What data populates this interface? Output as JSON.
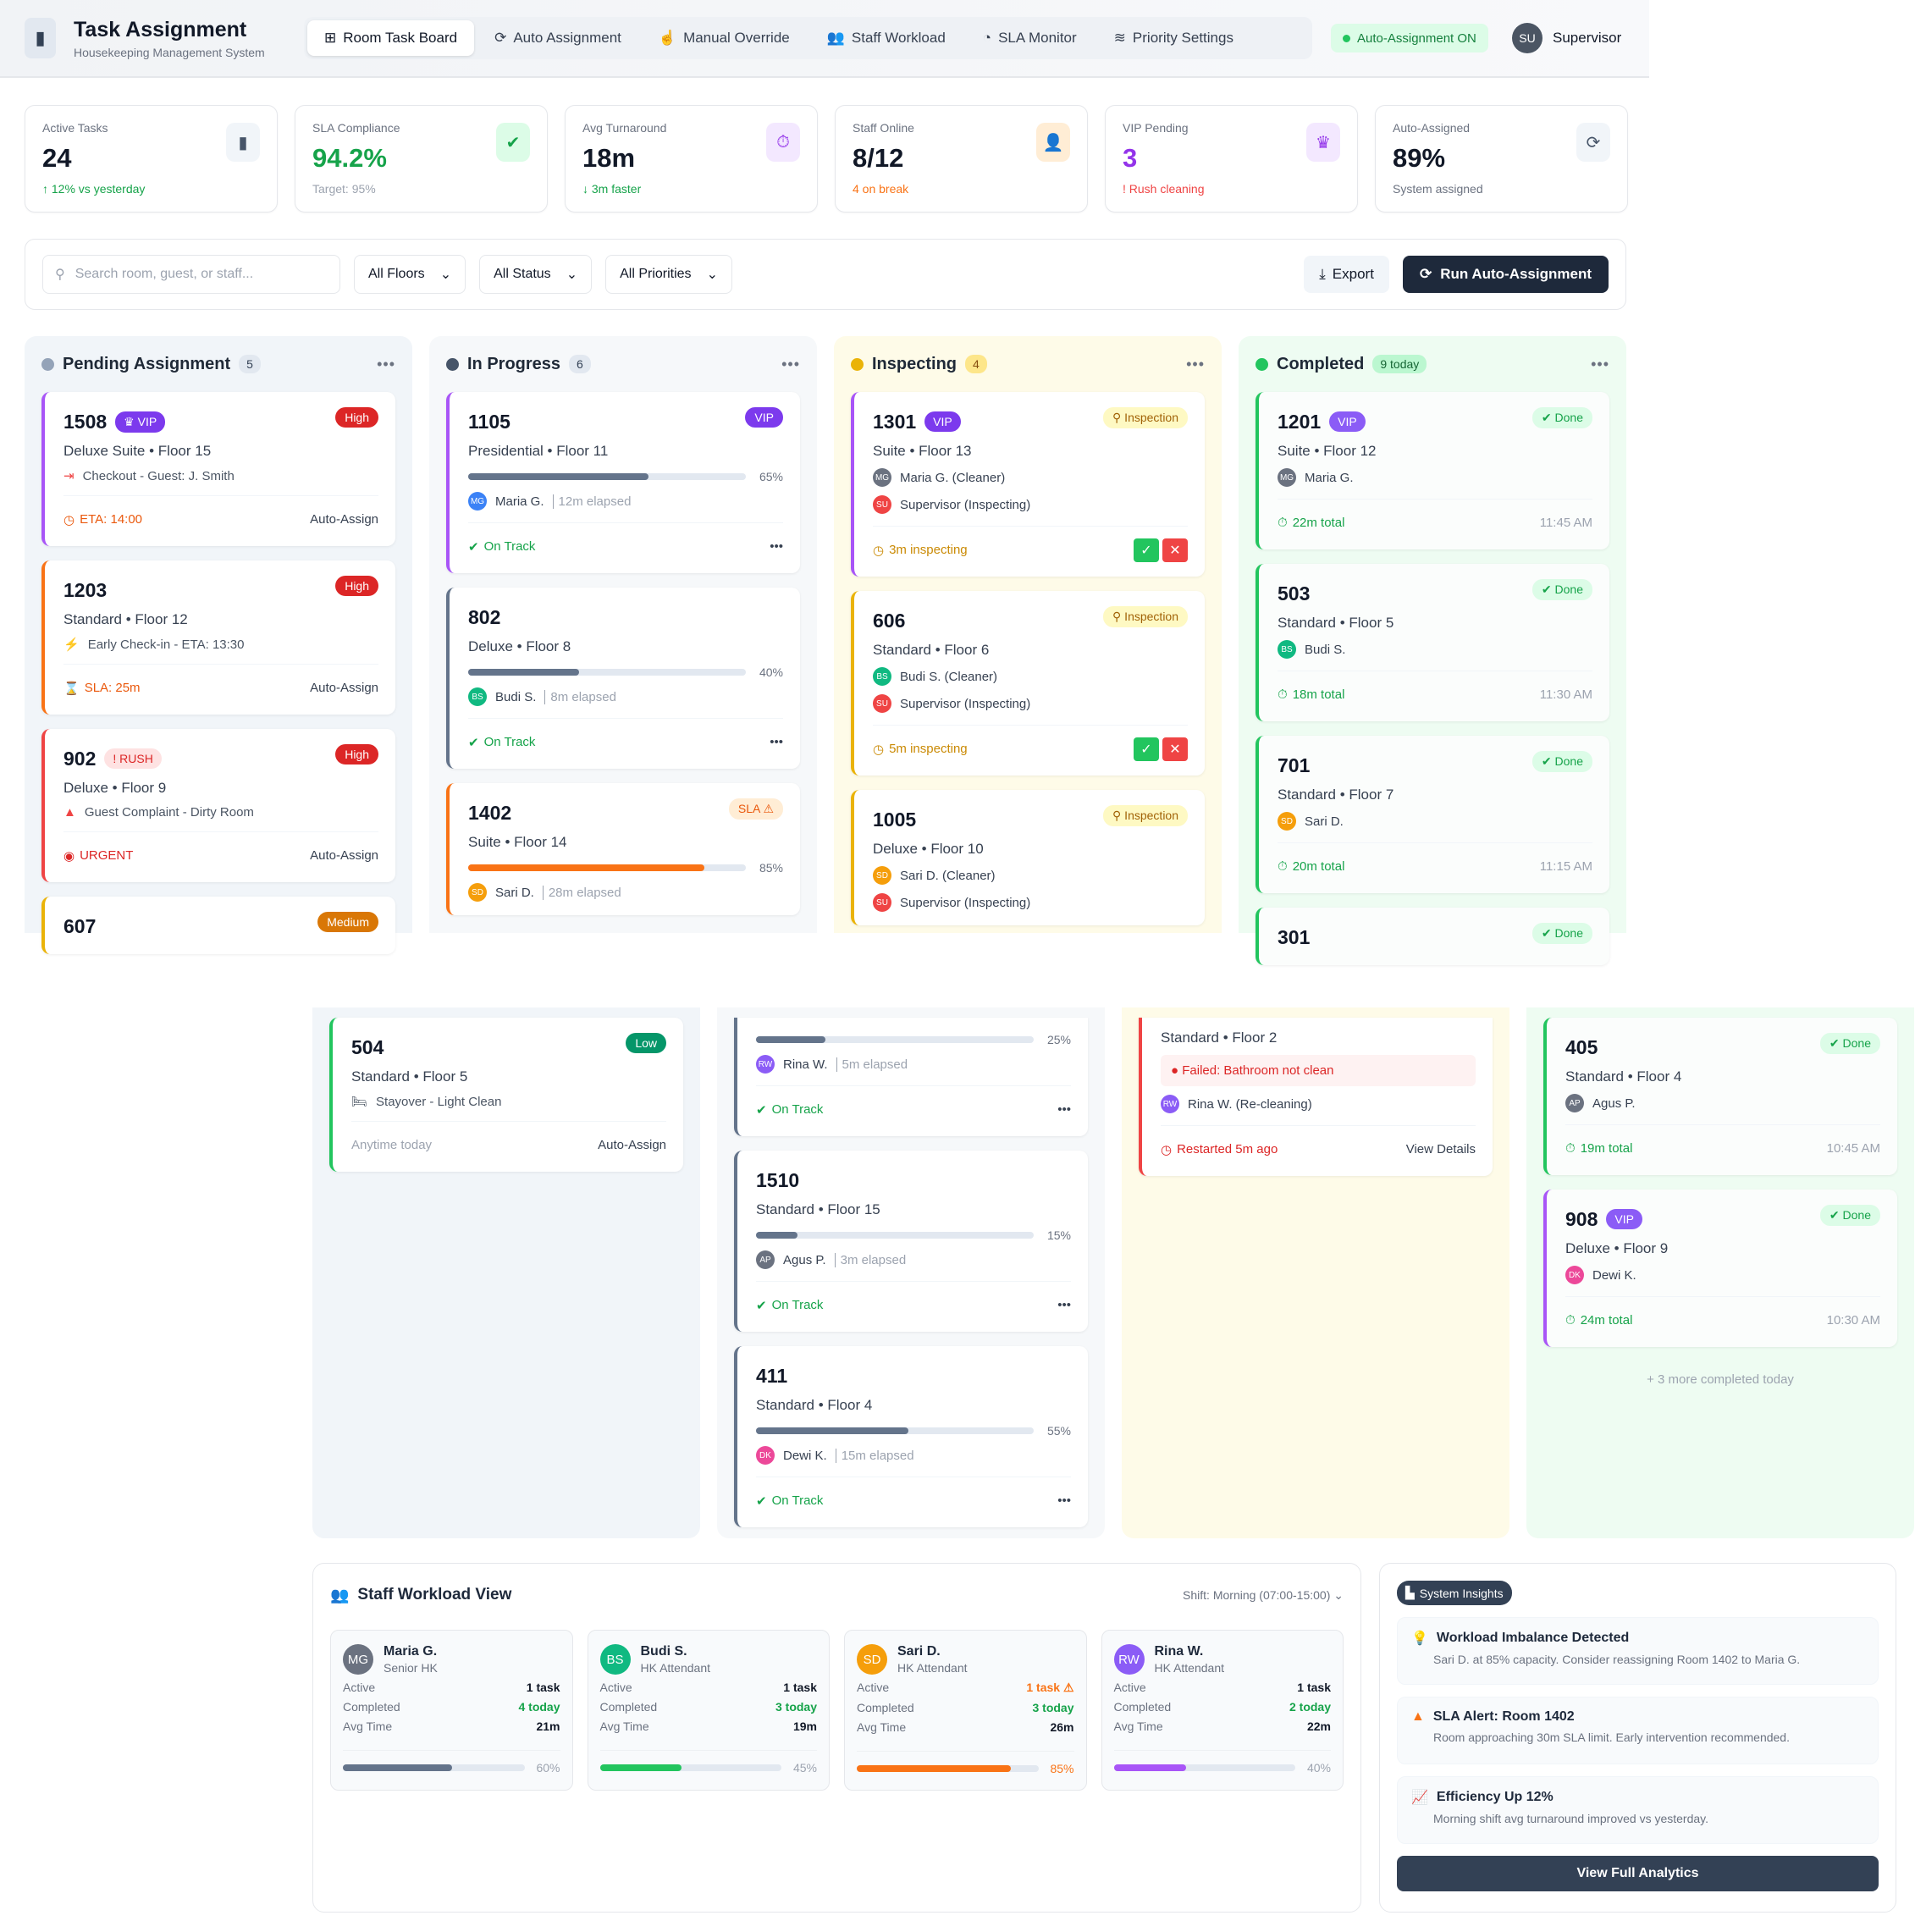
{
  "header": {
    "title": "Task Assignment",
    "subtitle": "Housekeeping Management System",
    "logo_icon": "clipboard-icon",
    "tabs": [
      {
        "label": "Room Task Board",
        "icon": "⊞",
        "active": true
      },
      {
        "label": "Auto Assignment",
        "icon": "⟳"
      },
      {
        "label": "Manual Override",
        "icon": "☝"
      },
      {
        "label": "Staff Workload",
        "icon": "👥"
      },
      {
        "label": "SLA Monitor",
        "icon": "◔"
      },
      {
        "label": "Priority Settings",
        "icon": "≋"
      }
    ],
    "status_badge": "Auto-Assignment ON",
    "user": {
      "initials": "SU",
      "name": "Supervisor"
    }
  },
  "stats": [
    {
      "label": "Active Tasks",
      "value": "24",
      "sub": "↑ 12% vs yesterday",
      "value_color": "#111827",
      "sub_color": "#16a34a",
      "icon": "▮",
      "icon_color": "#475569",
      "icon_bg": "#f1f5f9"
    },
    {
      "label": "SLA Compliance",
      "value": "94.2%",
      "sub": "Target: 95%",
      "value_color": "#16a34a",
      "sub_color": "#9ca3af",
      "icon": "✔",
      "icon_color": "#16a34a",
      "icon_bg": "#dcfce7"
    },
    {
      "label": "Avg Turnaround",
      "value": "18m",
      "sub": "↓ 3m faster",
      "value_color": "#111827",
      "sub_color": "#16a34a",
      "icon": "⏱",
      "icon_color": "#9333ea",
      "icon_bg": "#f3e8ff"
    },
    {
      "label": "Staff Online",
      "value": "8/12",
      "sub": "4 on break",
      "value_color": "#111827",
      "sub_color": "#f97316",
      "icon": "👤",
      "icon_color": "#ea580c",
      "icon_bg": "#ffedd5"
    },
    {
      "label": "VIP Pending",
      "value": "3",
      "sub": "! Rush cleaning",
      "value_color": "#9333ea",
      "sub_color": "#ef4444",
      "icon": "♛",
      "icon_color": "#9333ea",
      "icon_bg": "#f3e8ff"
    },
    {
      "label": "Auto-Assigned",
      "value": "89%",
      "sub": "System assigned",
      "value_color": "#111827",
      "sub_color": "#6b7280",
      "icon": "⟳",
      "icon_color": "#475569",
      "icon_bg": "#f1f5f9"
    }
  ],
  "filters": {
    "search_placeholder": "Search room, guest, or staff...",
    "selects": [
      "All Floors",
      "All Status",
      "All Priorities"
    ],
    "export_label": "Export",
    "run_label": "Run Auto-Assignment"
  },
  "board": {
    "columns": [
      {
        "title": "Pending Assignment",
        "count": "5",
        "dot": "#94a3b8",
        "count_bg": "#e2e8f0",
        "count_color": "#334155",
        "bg": "#f1f5f9",
        "cards": [
          {
            "room": "1508",
            "accent": "#a855f7",
            "tags": [
              {
                "text": "♛ VIP",
                "bg": "#7c3aed",
                "color": "#fff"
              }
            ],
            "badge": {
              "text": "High",
              "bg": "#dc2626",
              "color": "#fff"
            },
            "subtitle": "Deluxe Suite • Floor 15",
            "note": {
              "icon": "⇥",
              "icon_color": "#ef4444",
              "text": "Checkout - Guest: J. Smith"
            },
            "footer": {
              "icon": "◷",
              "text": "ETA: 14:00",
              "color": "#ea580c",
              "right": "Auto-Assign"
            }
          },
          {
            "room": "1203",
            "accent": "#f97316",
            "badge": {
              "text": "High",
              "bg": "#dc2626",
              "color": "#fff"
            },
            "subtitle": "Standard • Floor 12",
            "note": {
              "icon": "⚡",
              "icon_color": "#f97316",
              "text": "Early Check-in - ETA: 13:30"
            },
            "footer": {
              "icon": "⌛",
              "text": "SLA: 25m",
              "color": "#ea580c",
              "right": "Auto-Assign"
            }
          },
          {
            "room": "902",
            "accent": "#ef4444",
            "tags": [
              {
                "text": "! RUSH",
                "bg": "#fee2e2",
                "color": "#dc2626"
              }
            ],
            "badge": {
              "text": "High",
              "bg": "#dc2626",
              "color": "#fff"
            },
            "subtitle": "Deluxe • Floor 9",
            "note": {
              "icon": "▲",
              "icon_color": "#ef4444",
              "text": "Guest Complaint - Dirty Room"
            },
            "footer": {
              "icon": "◉",
              "text": "URGENT",
              "color": "#dc2626",
              "right": "Auto-Assign"
            }
          },
          {
            "room": "607",
            "accent": "#eab308",
            "badge": {
              "text": "Medium",
              "bg": "#d97706",
              "color": "#fff"
            }
          }
        ]
      },
      {
        "title": "In Progress",
        "count": "6",
        "dot": "#475569",
        "count_bg": "#e2e8f0",
        "count_color": "#334155",
        "bg": "#f6f8fa",
        "cards": [
          {
            "room": "1105",
            "accent": "#a855f7",
            "badge": {
              "text": "VIP",
              "bg": "#7c3aed",
              "color": "#fff"
            },
            "subtitle": "Presidential • Floor 11",
            "progress": {
              "value": 65,
              "label": "65%",
              "color": "#64748b"
            },
            "people": [
              {
                "initials": "MG",
                "color": "#3b82f6",
                "name": "Maria G.",
                "extra": "12m elapsed"
              }
            ],
            "footer": {
              "icon": "✔",
              "text": "On Track",
              "color": "#16a34a",
              "right": "•••"
            }
          },
          {
            "room": "802",
            "accent": "#64748b",
            "subtitle": "Deluxe • Floor 8",
            "progress": {
              "value": 40,
              "label": "40%",
              "color": "#64748b"
            },
            "people": [
              {
                "initials": "BS",
                "color": "#10b981",
                "name": "Budi S.",
                "extra": "8m elapsed"
              }
            ],
            "footer": {
              "icon": "✔",
              "text": "On Track",
              "color": "#16a34a",
              "right": "•••"
            }
          },
          {
            "room": "1402",
            "accent": "#f97316",
            "badge": {
              "text": "SLA ⚠",
              "bg": "#ffedd5",
              "color": "#ea580c"
            },
            "subtitle": "Suite • Floor 14",
            "progress": {
              "value": 85,
              "label": "85%",
              "color": "#f97316"
            },
            "people": [
              {
                "initials": "SD",
                "color": "#f59e0b",
                "name": "Sari D.",
                "extra": "28m elapsed"
              }
            ]
          }
        ]
      },
      {
        "title": "Inspecting",
        "count": "4",
        "dot": "#eab308",
        "count_bg": "#fde68a",
        "count_color": "#854d0e",
        "bg": "#fefbe8",
        "cards": [
          {
            "room": "1301",
            "accent": "#a855f7",
            "tags": [
              {
                "text": "VIP",
                "bg": "#7c3aed",
                "color": "#fff"
              }
            ],
            "badge": {
              "text": "⚲ Inspection",
              "bg": "#fef9c3",
              "color": "#a16207"
            },
            "subtitle": "Suite • Floor 13",
            "people": [
              {
                "initials": "MG",
                "color": "#6b7280",
                "name": "Maria G. (Cleaner)"
              },
              {
                "initials": "SU",
                "color": "#ef4444",
                "name": "Supervisor (Inspecting)"
              }
            ],
            "footer": {
              "icon": "◷",
              "text": "3m inspecting",
              "color": "#ca8a04",
              "actions": [
                "✓",
                "✕"
              ]
            }
          },
          {
            "room": "606",
            "accent": "#eab308",
            "badge": {
              "text": "⚲ Inspection",
              "bg": "#fef9c3",
              "color": "#a16207"
            },
            "subtitle": "Standard • Floor 6",
            "people": [
              {
                "initials": "BS",
                "color": "#10b981",
                "name": "Budi S. (Cleaner)"
              },
              {
                "initials": "SU",
                "color": "#ef4444",
                "name": "Supervisor (Inspecting)"
              }
            ],
            "footer": {
              "icon": "◷",
              "text": "5m inspecting",
              "color": "#ca8a04",
              "actions": [
                "✓",
                "✕"
              ]
            }
          },
          {
            "room": "1005",
            "accent": "#eab308",
            "badge": {
              "text": "⚲ Inspection",
              "bg": "#fef9c3",
              "color": "#a16207"
            },
            "subtitle": "Deluxe • Floor 10",
            "people": [
              {
                "initials": "SD",
                "color": "#f59e0b",
                "name": "Sari D. (Cleaner)"
              },
              {
                "initials": "SU",
                "color": "#ef4444",
                "name": "Supervisor (Inspecting)"
              }
            ]
          }
        ]
      },
      {
        "title": "Completed",
        "count": "9 today",
        "dot": "#22c55e",
        "count_bg": "#bbf7d0",
        "count_color": "#166534",
        "bg": "#eefcf2",
        "cards": [
          {
            "room": "1201",
            "done": true,
            "accent": "#22c55e",
            "tags": [
              {
                "text": "VIP",
                "bg": "#8b5cf6",
                "color": "#fff"
              }
            ],
            "badge": {
              "text": "✔ Done",
              "bg": "#dcfce7",
              "color": "#16a34a"
            },
            "subtitle": "Suite • Floor 12",
            "people": [
              {
                "initials": "MG",
                "color": "#6b7280",
                "name": "Maria G."
              }
            ],
            "footer": {
              "icon": "⏱",
              "text": "22m total",
              "color": "#16a34a",
              "right": "11:45 AM"
            }
          },
          {
            "room": "503",
            "done": true,
            "accent": "#22c55e",
            "badge": {
              "text": "✔ Done",
              "bg": "#dcfce7",
              "color": "#16a34a"
            },
            "subtitle": "Standard • Floor 5",
            "people": [
              {
                "initials": "BS",
                "color": "#10b981",
                "name": "Budi S."
              }
            ],
            "footer": {
              "icon": "⏱",
              "text": "18m total",
              "color": "#16a34a",
              "right": "11:30 AM"
            }
          },
          {
            "room": "701",
            "done": true,
            "accent": "#22c55e",
            "badge": {
              "text": "✔ Done",
              "bg": "#dcfce7",
              "color": "#16a34a"
            },
            "subtitle": "Standard • Floor 7",
            "people": [
              {
                "initials": "SD",
                "color": "#f59e0b",
                "name": "Sari D."
              }
            ],
            "footer": {
              "icon": "⏱",
              "text": "20m total",
              "color": "#16a34a",
              "right": "11:15 AM"
            }
          },
          {
            "room": "301",
            "done": true,
            "accent": "#22c55e",
            "badge": {
              "text": "✔ Done",
              "bg": "#dcfce7",
              "color": "#16a34a"
            }
          }
        ]
      }
    ]
  },
  "board_lower": {
    "columns": [
      {
        "bg": "#f1f5f9",
        "cards": [
          {
            "room": "504",
            "accent": "#22c55e",
            "badge": {
              "text": "Low",
              "bg": "#059669",
              "color": "#fff"
            },
            "subtitle": "Standard • Floor 5",
            "note": {
              "icon": "🛏",
              "icon_color": "#4b5563",
              "text": "Stayover - Light Clean"
            },
            "footer": {
              "text": "Anytime today",
              "color": "#9ca3af",
              "right": "Auto-Assign"
            }
          }
        ]
      },
      {
        "bg": "#f6f8fa",
        "cards": [
          {
            "cut": true,
            "accent": "#64748b",
            "progress": {
              "value": 25,
              "label": "25%",
              "color": "#64748b"
            },
            "people": [
              {
                "initials": "RW",
                "color": "#8b5cf6",
                "name": "Rina W.",
                "extra": "5m elapsed"
              }
            ],
            "footer": {
              "icon": "✔",
              "text": "On Track",
              "color": "#16a34a",
              "right": "•••"
            }
          },
          {
            "room": "1510",
            "accent": "#64748b",
            "subtitle": "Standard • Floor 15",
            "progress": {
              "value": 15,
              "label": "15%",
              "color": "#64748b"
            },
            "people": [
              {
                "initials": "AP",
                "color": "#6b7280",
                "name": "Agus P.",
                "extra": "3m elapsed"
              }
            ],
            "footer": {
              "icon": "✔",
              "text": "On Track",
              "color": "#16a34a",
              "right": "•••"
            }
          },
          {
            "room": "411",
            "accent": "#64748b",
            "subtitle": "Standard • Floor 4",
            "progress": {
              "value": 55,
              "label": "55%",
              "color": "#64748b"
            },
            "people": [
              {
                "initials": "DK",
                "color": "#ec4899",
                "name": "Dewi K.",
                "extra": "15m elapsed"
              }
            ],
            "footer": {
              "icon": "✔",
              "text": "On Track",
              "color": "#16a34a",
              "right": "•••"
            }
          }
        ]
      },
      {
        "bg": "#fefbe8",
        "cards": [
          {
            "cut": true,
            "accent": "#ef4444",
            "subtitle": "Standard • Floor 2",
            "alert": "● Failed: Bathroom not clean",
            "people": [
              {
                "initials": "RW",
                "color": "#8b5cf6",
                "name": "Rina W. (Re-cleaning)"
              }
            ],
            "footer": {
              "icon": "◷",
              "text": "Restarted 5m ago",
              "color": "#dc2626",
              "right": "View Details"
            }
          }
        ]
      },
      {
        "bg": "#eefcf2",
        "more": "+ 3 more completed today",
        "cards": [
          {
            "room": "405",
            "done": true,
            "accent": "#22c55e",
            "badge": {
              "text": "✔ Done",
              "bg": "#dcfce7",
              "color": "#16a34a"
            },
            "subtitle": "Standard • Floor 4",
            "people": [
              {
                "initials": "AP",
                "color": "#6b7280",
                "name": "Agus P."
              }
            ],
            "footer": {
              "icon": "⏱",
              "text": "19m total",
              "color": "#16a34a",
              "right": "10:45 AM"
            }
          },
          {
            "room": "908",
            "done": true,
            "accent": "#a855f7",
            "tags": [
              {
                "text": "VIP",
                "bg": "#8b5cf6",
                "color": "#fff"
              }
            ],
            "badge": {
              "text": "✔ Done",
              "bg": "#dcfce7",
              "color": "#16a34a"
            },
            "subtitle": "Deluxe • Floor 9",
            "people": [
              {
                "initials": "DK",
                "color": "#ec4899",
                "name": "Dewi K."
              }
            ],
            "footer": {
              "icon": "⏱",
              "text": "24m total",
              "color": "#16a34a",
              "right": "10:30 AM"
            }
          }
        ]
      }
    ]
  },
  "workload": {
    "title": "Staff Workload View",
    "shift": "Shift: Morning (07:00-15:00)",
    "row_labels": {
      "active": "Active",
      "completed": "Completed",
      "avg": "Avg Time"
    },
    "staff": [
      {
        "initials": "MG",
        "color": "#6b7280",
        "name": "Maria G.",
        "role": "Senior HK",
        "active": "1 task",
        "active_color": "#111827",
        "completed": "4 today",
        "avg": "21m",
        "load": 60,
        "load_label": "60%",
        "bar": "#64748b",
        "pct_color": "#9ca3af"
      },
      {
        "initials": "BS",
        "color": "#10b981",
        "name": "Budi S.",
        "role": "HK Attendant",
        "active": "1 task",
        "active_color": "#111827",
        "completed": "3 today",
        "avg": "19m",
        "load": 45,
        "load_label": "45%",
        "bar": "#22c55e",
        "pct_color": "#9ca3af"
      },
      {
        "initials": "SD",
        "color": "#f59e0b",
        "name": "Sari D.",
        "role": "HK Attendant",
        "active": "1 task ⚠",
        "active_color": "#f97316",
        "completed": "3 today",
        "avg": "26m",
        "load": 85,
        "load_label": "85%",
        "bar": "#f97316",
        "pct_color": "#f97316"
      },
      {
        "initials": "RW",
        "color": "#8b5cf6",
        "name": "Rina W.",
        "role": "HK Attendant",
        "active": "1 task",
        "active_color": "#111827",
        "completed": "2 today",
        "avg": "22m",
        "load": 40,
        "load_label": "40%",
        "bar": "#a855f7",
        "pct_color": "#9ca3af"
      }
    ]
  },
  "insights": {
    "badge": "System Insights",
    "items": [
      {
        "icon": "💡",
        "icon_color": "#eab308",
        "title": "Workload Imbalance Detected",
        "text": "Sari D. at 85% capacity. Consider reassigning Room 1402 to Maria G."
      },
      {
        "icon": "▲",
        "icon_color": "#f97316",
        "title": "SLA Alert: Room 1402",
        "text": "Room approaching 30m SLA limit. Early intervention recommended."
      },
      {
        "icon": "📈",
        "icon_color": "#22c55e",
        "title": "Efficiency Up 12%",
        "text": "Morning shift avg turnaround improved vs yesterday."
      }
    ],
    "button": "View Full Analytics"
  }
}
